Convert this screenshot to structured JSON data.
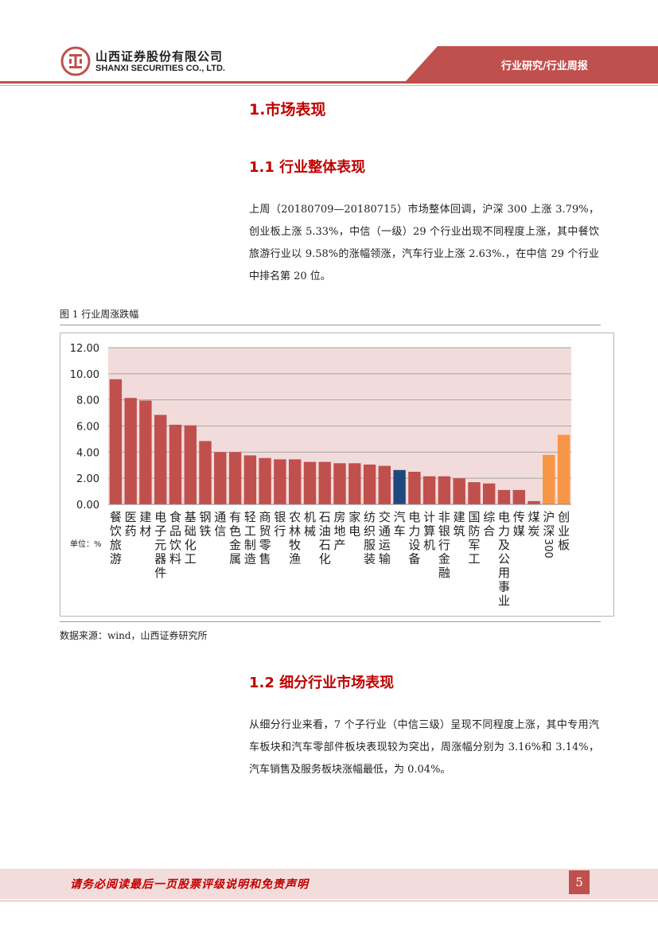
{
  "header": {
    "company_cn": "山西证券股份有限公司",
    "company_en": "SHANXI SECURITIES CO., LTD.",
    "tag": "行业研究/行业周报",
    "brand_color": "#c0504d"
  },
  "section1": {
    "title": "1.市场表现"
  },
  "section1_1": {
    "title": "1.1 行业整体表现",
    "paragraph": "上周（20180709—20180715）市场整体回调，沪深 300 上涨 3.79%，创业板上涨 5.33%，中信（一级）29 个行业出现不同程度上涨，其中餐饮旅游行业以 9.58%的涨幅领涨，汽车行业上涨 2.63%.，在中信 29 个行业中排名第 20 位。"
  },
  "figure1": {
    "title": "图 1  行业周涨跌幅",
    "source": "数据来源：wind，山西证券研究所",
    "unit_label": "单位：%"
  },
  "chart_data": {
    "type": "bar",
    "ylim": [
      0,
      12
    ],
    "yticks": [
      "0.00",
      "2.00",
      "4.00",
      "6.00",
      "8.00",
      "10.00",
      "12.00"
    ],
    "grid": true,
    "categories": [
      "餐饮旅游",
      "医药",
      "建材",
      "电子元器件",
      "食品饮料",
      "基础化工",
      "钢铁",
      "通信",
      "有色金属",
      "轻工制造",
      "商贸零售",
      "银行",
      "农林牧渔",
      "机械",
      "石油石化",
      "房地产",
      "家电",
      "纺织服装",
      "交通运输",
      "汽车",
      "电力设备",
      "计算机",
      "非银行金融",
      "建筑",
      "国防军工",
      "综合",
      "电力及公用事业",
      "传媒",
      "煤炭",
      "沪深300",
      "创业板"
    ],
    "values": [
      9.58,
      8.15,
      7.95,
      6.85,
      6.1,
      6.05,
      4.85,
      4.0,
      4.0,
      3.75,
      3.55,
      3.45,
      3.45,
      3.25,
      3.25,
      3.15,
      3.15,
      3.05,
      2.95,
      2.63,
      2.5,
      2.15,
      2.15,
      2.0,
      1.7,
      1.6,
      1.1,
      1.1,
      0.25,
      3.79,
      5.33
    ],
    "colors": {
      "default": "#c0504d",
      "highlight": "#1f497d",
      "index": "#f79646",
      "plot_bg": "#f2dcdb"
    },
    "highlight_category": "汽车",
    "index_categories": [
      "沪深300",
      "创业板"
    ]
  },
  "section1_2": {
    "title": "1.2 细分行业市场表现",
    "paragraph": "从细分行业来看，7 个子行业（中信三级）呈现不同程度上涨，其中专用汽车板块和汽车零部件板块表现较为突出，周涨幅分别为 3.16%和 3.14%，汽车销售及服务板块涨幅最低，为 0.04%。"
  },
  "footer": {
    "disclaimer": "请务必阅读最后一页股票评级说明和免责声明",
    "page_number": "5"
  }
}
